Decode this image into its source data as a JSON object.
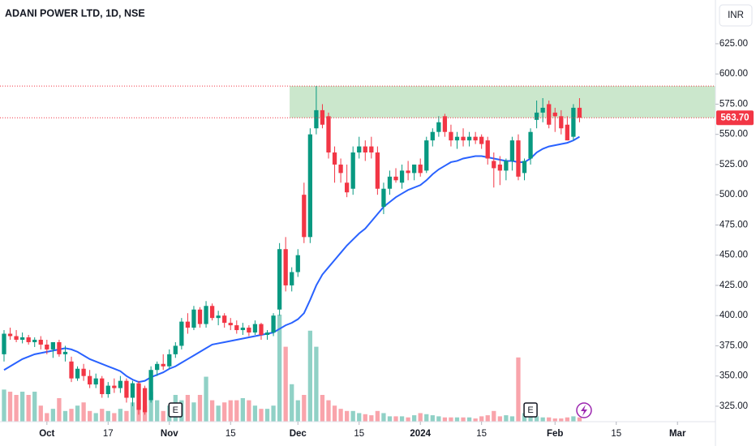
{
  "chart_data": {
    "type": "candlestick",
    "title": "ADANI POWER LTD, 1D, NSE",
    "currency": "INR",
    "open": [
      368,
      385,
      383,
      380,
      382,
      378,
      380,
      376,
      372,
      378,
      368,
      362,
      348,
      356,
      350,
      343,
      348,
      335,
      342,
      340,
      346,
      332,
      344,
      340,
      330,
      355,
      360,
      358,
      368,
      375,
      395,
      390,
      405,
      393,
      408,
      398,
      400,
      394,
      392,
      388,
      390,
      386,
      393,
      384,
      386,
      405,
      455,
      425,
      436,
      500,
      465,
      555,
      570,
      565,
      535,
      525,
      510,
      505,
      535,
      540,
      540,
      535,
      490,
      505,
      515,
      510,
      520,
      518,
      525,
      520,
      545,
      552,
      565,
      552,
      545,
      548,
      545,
      548,
      548,
      545,
      528,
      525,
      520,
      528,
      545,
      518,
      530,
      562,
      568,
      575,
      568,
      565,
      558,
      548,
      572
    ],
    "high": [
      388,
      390,
      388,
      386,
      384,
      382,
      383,
      380,
      378,
      380,
      375,
      366,
      358,
      360,
      355,
      352,
      350,
      345,
      348,
      350,
      348,
      346,
      346,
      342,
      358,
      362,
      368,
      372,
      378,
      398,
      402,
      408,
      407,
      412,
      410,
      404,
      402,
      398,
      396,
      394,
      392,
      396,
      394,
      388,
      402,
      460,
      465,
      440,
      455,
      510,
      555,
      590,
      575,
      568,
      540,
      530,
      525,
      540,
      548,
      545,
      548,
      540,
      510,
      520,
      522,
      525,
      528,
      525,
      530,
      548,
      555,
      565,
      567,
      558,
      552,
      555,
      552,
      552,
      550,
      548,
      535,
      532,
      530,
      548,
      550,
      530,
      555,
      578,
      580,
      578,
      572,
      570,
      565,
      575,
      580
    ],
    "low": [
      362,
      380,
      378,
      377,
      376,
      374,
      372,
      368,
      365,
      366,
      362,
      345,
      346,
      346,
      340,
      340,
      332,
      332,
      336,
      336,
      328,
      325,
      318,
      318,
      328,
      350,
      355,
      356,
      365,
      372,
      385,
      388,
      390,
      390,
      396,
      392,
      390,
      388,
      385,
      384,
      383,
      384,
      380,
      380,
      383,
      400,
      420,
      420,
      432,
      460,
      460,
      550,
      555,
      530,
      510,
      510,
      498,
      500,
      530,
      528,
      530,
      500,
      484,
      500,
      510,
      505,
      512,
      512,
      515,
      518,
      540,
      548,
      548,
      540,
      538,
      540,
      540,
      542,
      538,
      525,
      506,
      508,
      512,
      520,
      512,
      512,
      525,
      555,
      560,
      555,
      552,
      550,
      545,
      545,
      560
    ],
    "close": [
      385,
      383,
      380,
      382,
      378,
      380,
      376,
      372,
      378,
      368,
      370,
      348,
      356,
      350,
      343,
      348,
      335,
      342,
      340,
      346,
      332,
      344,
      322,
      320,
      355,
      360,
      358,
      368,
      375,
      395,
      390,
      405,
      393,
      408,
      398,
      400,
      394,
      392,
      388,
      390,
      386,
      393,
      384,
      386,
      400,
      455,
      425,
      436,
      450,
      465,
      550,
      570,
      558,
      535,
      525,
      518,
      502,
      535,
      540,
      535,
      535,
      505,
      505,
      515,
      512,
      520,
      518,
      525,
      518,
      545,
      552,
      560,
      552,
      545,
      548,
      545,
      548,
      545,
      542,
      530,
      522,
      520,
      528,
      545,
      515,
      528,
      552,
      568,
      572,
      558,
      565,
      555,
      545,
      572,
      563.7
    ],
    "volume": [
      30,
      28,
      25,
      28,
      25,
      28,
      15,
      8,
      12,
      22,
      10,
      12,
      15,
      18,
      10,
      8,
      12,
      10,
      8,
      12,
      10,
      18,
      20,
      15,
      28,
      20,
      10,
      15,
      25,
      20,
      25,
      18,
      25,
      42,
      20,
      15,
      18,
      20,
      20,
      22,
      20,
      15,
      12,
      12,
      15,
      100,
      70,
      35,
      20,
      25,
      85,
      70,
      25,
      20,
      15,
      12,
      10,
      10,
      8,
      7,
      6,
      10,
      8,
      5,
      5,
      5,
      4,
      6,
      8,
      7,
      6,
      5,
      4,
      4,
      4,
      4,
      4,
      3,
      5,
      6,
      10,
      5,
      6,
      5,
      60,
      8,
      10,
      5,
      4,
      4,
      3,
      3,
      4,
      5,
      4
    ],
    "ma": [
      355,
      358,
      361,
      364,
      366,
      368,
      369,
      370,
      371,
      372,
      373,
      372,
      370,
      367,
      364,
      362,
      360,
      358,
      356,
      354,
      350,
      347,
      345,
      346,
      349,
      351,
      353,
      356,
      358,
      361,
      364,
      367,
      370,
      373,
      376,
      377,
      378,
      379,
      380,
      381,
      382,
      383,
      384,
      385,
      386,
      389,
      392,
      394,
      397,
      402,
      413,
      425,
      434,
      440,
      446,
      452,
      458,
      463,
      468,
      472,
      478,
      484,
      490,
      494,
      498,
      501,
      504,
      506,
      508,
      512,
      517,
      521,
      524,
      527,
      528,
      530,
      531,
      532,
      532,
      531,
      530,
      529,
      528,
      528,
      527,
      527,
      530,
      535,
      538,
      540,
      541,
      542,
      543,
      545,
      548
    ],
    "last_close_label": "563.70",
    "zone": {
      "low": 563.7,
      "high": 590,
      "start": 47
    },
    "events": [
      {
        "index": 28,
        "label": "E"
      },
      {
        "index": 86,
        "label": "E"
      }
    ],
    "up_color": "#089981",
    "down_color": "#f23645",
    "ma_color": "#2962ff",
    "zone_color": "#c8e6c9",
    "xlim": [
      -0.66,
      116.2
    ],
    "xticks": [
      {
        "value": 7,
        "label": "Oct"
      },
      {
        "value": 17,
        "label": "17"
      },
      {
        "value": 27,
        "label": "Nov"
      },
      {
        "value": 37,
        "label": "15"
      },
      {
        "value": 48,
        "label": "Dec"
      },
      {
        "value": 58,
        "label": "15"
      },
      {
        "value": 68,
        "label": "2024"
      },
      {
        "value": 78,
        "label": "15"
      },
      {
        "value": 90,
        "label": "Feb"
      },
      {
        "value": 100,
        "label": "15"
      },
      {
        "value": 110,
        "label": "Mar"
      }
    ],
    "ylim": [
      312.2,
      661.2
    ],
    "yticks": [
      {
        "value": 325,
        "label": "325.00"
      },
      {
        "value": 350,
        "label": "350.00"
      },
      {
        "value": 375,
        "label": "375.00"
      },
      {
        "value": 400,
        "label": "400.00"
      },
      {
        "value": 425,
        "label": "425.00"
      },
      {
        "value": 450,
        "label": "450.00"
      },
      {
        "value": 475,
        "label": "475.00"
      },
      {
        "value": 500,
        "label": "500.00"
      },
      {
        "value": 525,
        "label": "525.00"
      },
      {
        "value": 550,
        "label": "550.00"
      },
      {
        "value": 575,
        "label": "575.00"
      },
      {
        "value": 600,
        "label": "600.00"
      },
      {
        "value": 625,
        "label": "625.00"
      }
    ]
  }
}
